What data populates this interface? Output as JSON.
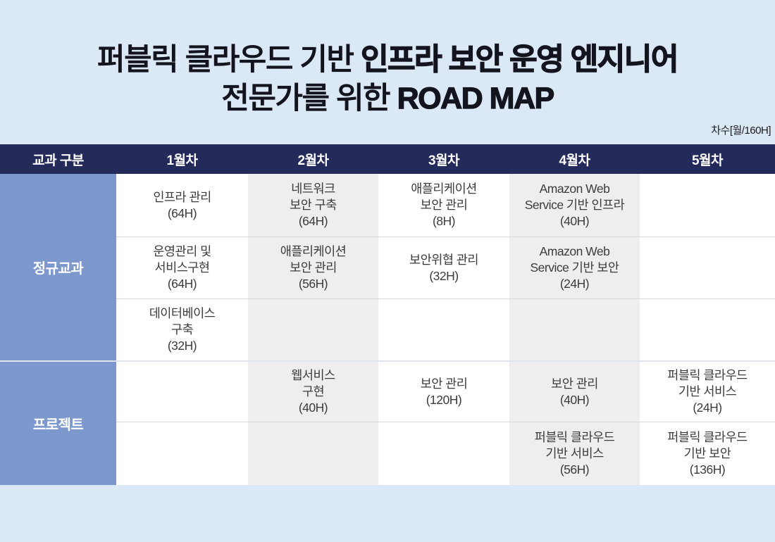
{
  "title": {
    "line1_regular": "퍼블릭 클라우드 기반 ",
    "line1_bold": "인프라 보안 운영 엔지니어",
    "line2_regular": "전문가를 위한 ",
    "line2_bold": "ROAD MAP"
  },
  "note": "차수[월/160H]",
  "colors": {
    "page_background": "#dbe8f6",
    "header_background": "#242a5a",
    "label_background": "#7d98cc",
    "alt_column_background": "#eeeeee",
    "row_border": "#d9d9d9"
  },
  "table": {
    "headers": [
      "교과 구분",
      "1월차",
      "2월차",
      "3월차",
      "4월차",
      "5월차"
    ],
    "sections": [
      {
        "label": "정규교과",
        "rows": [
          [
            "인프라 관리\n(64H)",
            "네트워크\n보안 구축\n(64H)",
            "애플리케이션\n보안 관리\n(8H)",
            "Amazon Web\nService 기반 인프라\n(40H)",
            ""
          ],
          [
            "운영관리 및\n서비스구현\n(64H)",
            "애플리케이션\n보안 관리\n(56H)",
            "보안위협 관리\n(32H)",
            "Amazon Web\nService 기반 보안\n(24H)",
            ""
          ],
          [
            "데이터베이스\n구축\n(32H)",
            "",
            "",
            "",
            ""
          ]
        ]
      },
      {
        "label": "프로젝트",
        "rows": [
          [
            "",
            "웹서비스\n구현\n(40H)",
            "보안 관리\n(120H)",
            "보안 관리\n(40H)",
            "퍼블릭 클라우드\n기반 서비스\n(24H)"
          ],
          [
            "",
            "",
            "",
            "퍼블릭 클라우드\n기반 서비스\n(56H)",
            "퍼블릭 클라우드\n기반 보안\n(136H)"
          ]
        ]
      }
    ]
  }
}
